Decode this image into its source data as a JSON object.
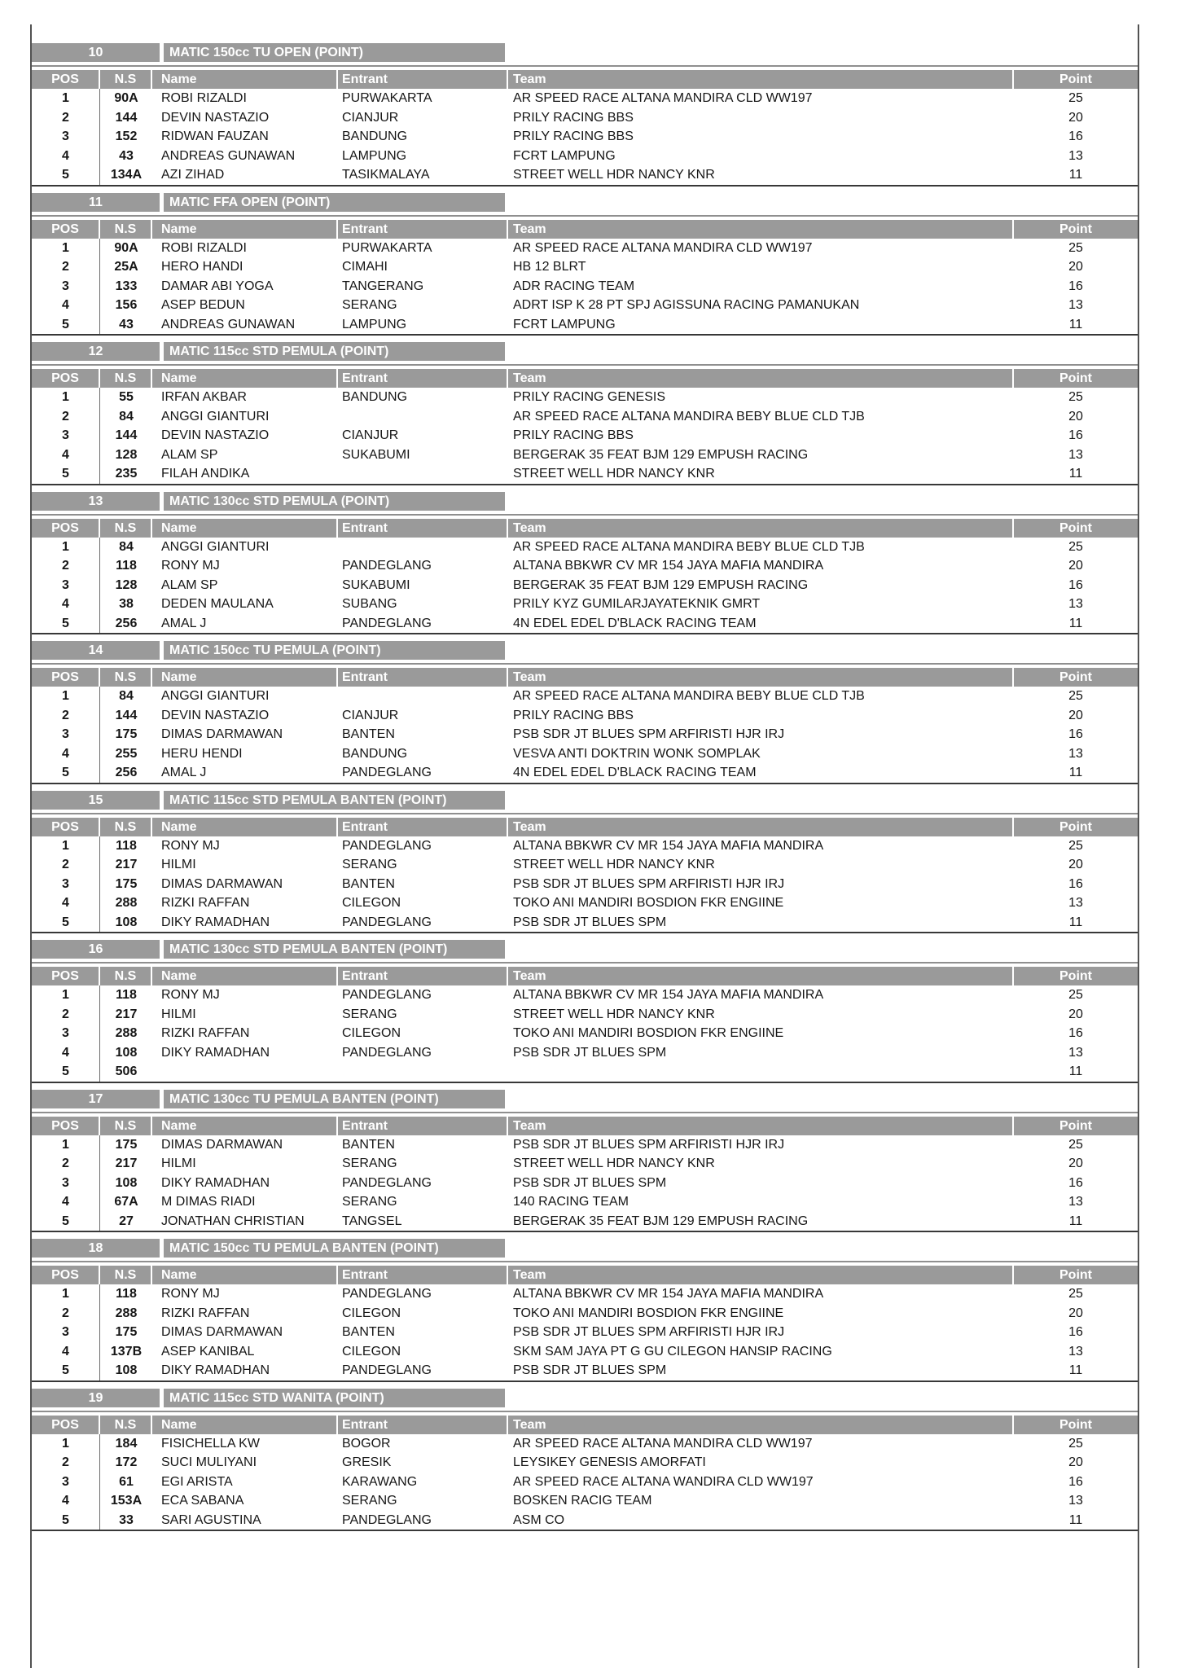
{
  "colors": {
    "header_gray": "#9a9a9a"
  },
  "columns": {
    "pos": "POS",
    "ns": "N.S",
    "name": "Name",
    "entrant": "Entrant",
    "team": "Team",
    "point": "Point"
  },
  "sections": [
    {
      "num": "10",
      "title": "MATIC 150cc TU OPEN (POINT)",
      "rows": [
        {
          "pos": "1",
          "ns": "90A",
          "name": "ROBI RIZALDI",
          "entrant": "PURWAKARTA",
          "team": "AR SPEED RACE ALTANA MANDIRA CLD WW197",
          "point": "25"
        },
        {
          "pos": "2",
          "ns": "144",
          "name": "DEVIN NASTAZIO",
          "entrant": "CIANJUR",
          "team": "PRILY RACING BBS",
          "point": "20"
        },
        {
          "pos": "3",
          "ns": "152",
          "name": "RIDWAN FAUZAN",
          "entrant": "BANDUNG",
          "team": "PRILY RACING BBS",
          "point": "16"
        },
        {
          "pos": "4",
          "ns": "43",
          "name": "ANDREAS GUNAWAN",
          "entrant": "LAMPUNG",
          "team": "FCRT LAMPUNG",
          "point": "13"
        },
        {
          "pos": "5",
          "ns": "134A",
          "name": "AZI ZIHAD",
          "entrant": "TASIKMALAYA",
          "team": "STREET WELL HDR NANCY KNR",
          "point": "11"
        }
      ]
    },
    {
      "num": "11",
      "title": "MATIC FFA OPEN (POINT)",
      "rows": [
        {
          "pos": "1",
          "ns": "90A",
          "name": "ROBI RIZALDI",
          "entrant": "PURWAKARTA",
          "team": "AR SPEED RACE ALTANA MANDIRA CLD WW197",
          "point": "25"
        },
        {
          "pos": "2",
          "ns": "25A",
          "name": "HERO HANDI",
          "entrant": "CIMAHI",
          "team": "HB 12 BLRT",
          "point": "20"
        },
        {
          "pos": "3",
          "ns": "133",
          "name": "DAMAR ABI YOGA",
          "entrant": "TANGERANG",
          "team": "ADR RACING TEAM",
          "point": "16"
        },
        {
          "pos": "4",
          "ns": "156",
          "name": "ASEP BEDUN",
          "entrant": "SERANG",
          "team": "ADRT ISP K 28 PT SPJ AGISSUNA RACING PAMANUKAN",
          "point": "13"
        },
        {
          "pos": "5",
          "ns": "43",
          "name": "ANDREAS GUNAWAN",
          "entrant": "LAMPUNG",
          "team": "FCRT LAMPUNG",
          "point": "11"
        }
      ]
    },
    {
      "num": "12",
      "title": "MATIC 115cc STD PEMULA (POINT)",
      "rows": [
        {
          "pos": "1",
          "ns": "55",
          "name": "IRFAN AKBAR",
          "entrant": "BANDUNG",
          "team": "PRILY RACING GENESIS",
          "point": "25"
        },
        {
          "pos": "2",
          "ns": "84",
          "name": "ANGGI GIANTURI",
          "entrant": "",
          "team": "AR SPEED RACE ALTANA MANDIRA BEBY BLUE CLD TJB",
          "point": "20"
        },
        {
          "pos": "3",
          "ns": "144",
          "name": "DEVIN NASTAZIO",
          "entrant": "CIANJUR",
          "team": "PRILY RACING BBS",
          "point": "16"
        },
        {
          "pos": "4",
          "ns": "128",
          "name": "ALAM SP",
          "entrant": "SUKABUMI",
          "team": "BERGERAK 35 FEAT BJM 129 EMPUSH RACING",
          "point": "13"
        },
        {
          "pos": "5",
          "ns": "235",
          "name": "FILAH ANDIKA",
          "entrant": "",
          "team": "STREET WELL HDR NANCY KNR",
          "point": "11"
        }
      ]
    },
    {
      "num": "13",
      "title": "MATIC 130cc STD PEMULA (POINT)",
      "rows": [
        {
          "pos": "1",
          "ns": "84",
          "name": "ANGGI GIANTURI",
          "entrant": "",
          "team": "AR SPEED RACE ALTANA MANDIRA BEBY BLUE CLD TJB",
          "point": "25"
        },
        {
          "pos": "2",
          "ns": "118",
          "name": "RONY MJ",
          "entrant": "PANDEGLANG",
          "team": "ALTANA BBKWR CV MR 154 JAYA MAFIA MANDIRA",
          "point": "20"
        },
        {
          "pos": "3",
          "ns": "128",
          "name": "ALAM SP",
          "entrant": "SUKABUMI",
          "team": "BERGERAK 35 FEAT BJM 129 EMPUSH RACING",
          "point": "16"
        },
        {
          "pos": "4",
          "ns": "38",
          "name": "DEDEN MAULANA",
          "entrant": "SUBANG",
          "team": "PRILY KYZ GUMILARJAYATEKNIK GMRT",
          "point": "13"
        },
        {
          "pos": "5",
          "ns": "256",
          "name": "AMAL J",
          "entrant": "PANDEGLANG",
          "team": "4N EDEL EDEL D'BLACK RACING TEAM",
          "point": "11"
        }
      ]
    },
    {
      "num": "14",
      "title": "MATIC 150cc TU PEMULA (POINT)",
      "rows": [
        {
          "pos": "1",
          "ns": "84",
          "name": "ANGGI GIANTURI",
          "entrant": "",
          "team": "AR SPEED RACE ALTANA MANDIRA BEBY BLUE CLD TJB",
          "point": "25"
        },
        {
          "pos": "2",
          "ns": "144",
          "name": "DEVIN NASTAZIO",
          "entrant": "CIANJUR",
          "team": "PRILY RACING BBS",
          "point": "20"
        },
        {
          "pos": "3",
          "ns": "175",
          "name": "DIMAS DARMAWAN",
          "entrant": "BANTEN",
          "team": "PSB SDR JT BLUES SPM ARFIRISTI HJR IRJ",
          "point": "16"
        },
        {
          "pos": "4",
          "ns": "255",
          "name": "HERU HENDI",
          "entrant": "BANDUNG",
          "team": "VESVA ANTI DOKTRIN WONK SOMPLAK",
          "point": "13"
        },
        {
          "pos": "5",
          "ns": "256",
          "name": "AMAL J",
          "entrant": "PANDEGLANG",
          "team": "4N EDEL EDEL D'BLACK RACING TEAM",
          "point": "11"
        }
      ]
    },
    {
      "num": "15",
      "title": "MATIC 115cc STD PEMULA BANTEN (POINT)",
      "rows": [
        {
          "pos": "1",
          "ns": "118",
          "name": "RONY MJ",
          "entrant": "PANDEGLANG",
          "team": "ALTANA BBKWR CV MR 154 JAYA MAFIA MANDIRA",
          "point": "25"
        },
        {
          "pos": "2",
          "ns": "217",
          "name": "HILMI",
          "entrant": "SERANG",
          "team": "STREET WELL HDR NANCY KNR",
          "point": "20"
        },
        {
          "pos": "3",
          "ns": "175",
          "name": "DIMAS DARMAWAN",
          "entrant": "BANTEN",
          "team": "PSB SDR JT BLUES SPM ARFIRISTI HJR IRJ",
          "point": "16"
        },
        {
          "pos": "4",
          "ns": "288",
          "name": "RIZKI RAFFAN",
          "entrant": "CILEGON",
          "team": "TOKO ANI MANDIRI BOSDION FKR ENGIINE",
          "point": "13"
        },
        {
          "pos": "5",
          "ns": "108",
          "name": "DIKY RAMADHAN",
          "entrant": "PANDEGLANG",
          "team": "PSB SDR JT BLUES SPM",
          "point": "11"
        }
      ]
    },
    {
      "num": "16",
      "title": "MATIC 130cc STD PEMULA BANTEN (POINT)",
      "rows": [
        {
          "pos": "1",
          "ns": "118",
          "name": "RONY MJ",
          "entrant": "PANDEGLANG",
          "team": "ALTANA BBKWR CV MR 154 JAYA MAFIA MANDIRA",
          "point": "25"
        },
        {
          "pos": "2",
          "ns": "217",
          "name": "HILMI",
          "entrant": "SERANG",
          "team": "STREET WELL HDR NANCY KNR",
          "point": "20"
        },
        {
          "pos": "3",
          "ns": "288",
          "name": "RIZKI RAFFAN",
          "entrant": "CILEGON",
          "team": "TOKO ANI MANDIRI BOSDION FKR ENGIINE",
          "point": "16"
        },
        {
          "pos": "4",
          "ns": "108",
          "name": "DIKY RAMADHAN",
          "entrant": "PANDEGLANG",
          "team": "PSB SDR JT BLUES SPM",
          "point": "13"
        },
        {
          "pos": "5",
          "ns": "506",
          "name": "",
          "entrant": "",
          "team": "",
          "point": "11"
        }
      ]
    },
    {
      "num": "17",
      "title": "MATIC 130cc TU PEMULA BANTEN (POINT)",
      "rows": [
        {
          "pos": "1",
          "ns": "175",
          "name": "DIMAS DARMAWAN",
          "entrant": "BANTEN",
          "team": "PSB SDR JT BLUES SPM ARFIRISTI HJR IRJ",
          "point": "25"
        },
        {
          "pos": "2",
          "ns": "217",
          "name": "HILMI",
          "entrant": "SERANG",
          "team": "STREET WELL HDR NANCY KNR",
          "point": "20"
        },
        {
          "pos": "3",
          "ns": "108",
          "name": "DIKY RAMADHAN",
          "entrant": "PANDEGLANG",
          "team": "PSB SDR JT BLUES SPM",
          "point": "16"
        },
        {
          "pos": "4",
          "ns": "67A",
          "name": "M DIMAS RIADI",
          "entrant": "SERANG",
          "team": "140 RACING TEAM",
          "point": "13"
        },
        {
          "pos": "5",
          "ns": "27",
          "name": "JONATHAN CHRISTIAN",
          "entrant": "TANGSEL",
          "team": "BERGERAK 35 FEAT BJM 129 EMPUSH RACING",
          "point": "11"
        }
      ]
    },
    {
      "num": "18",
      "title": "MATIC 150cc TU PEMULA BANTEN (POINT)",
      "rows": [
        {
          "pos": "1",
          "ns": "118",
          "name": "RONY MJ",
          "entrant": "PANDEGLANG",
          "team": "ALTANA BBKWR CV MR 154 JAYA MAFIA MANDIRA",
          "point": "25"
        },
        {
          "pos": "2",
          "ns": "288",
          "name": "RIZKI RAFFAN",
          "entrant": "CILEGON",
          "team": "TOKO ANI MANDIRI BOSDION FKR ENGIINE",
          "point": "20"
        },
        {
          "pos": "3",
          "ns": "175",
          "name": "DIMAS DARMAWAN",
          "entrant": "BANTEN",
          "team": "PSB SDR JT BLUES SPM ARFIRISTI HJR IRJ",
          "point": "16"
        },
        {
          "pos": "4",
          "ns": "137B",
          "name": "ASEP KANIBAL",
          "entrant": "CILEGON",
          "team": "SKM SAM JAYA PT G GU CILEGON HANSIP RACING",
          "point": "13"
        },
        {
          "pos": "5",
          "ns": "108",
          "name": "DIKY RAMADHAN",
          "entrant": "PANDEGLANG",
          "team": "PSB SDR JT BLUES SPM",
          "point": "11"
        }
      ]
    },
    {
      "num": "19",
      "title": "MATIC 115cc STD WANITA (POINT)",
      "rows": [
        {
          "pos": "1",
          "ns": "184",
          "name": "FISICHELLA KW",
          "entrant": "BOGOR",
          "team": "AR SPEED RACE ALTANA MANDIRA CLD WW197",
          "point": "25"
        },
        {
          "pos": "2",
          "ns": "172",
          "name": "SUCI MULIYANI",
          "entrant": "GRESIK",
          "team": "LEYSIKEY GENESIS AMORFATI",
          "point": "20"
        },
        {
          "pos": "3",
          "ns": "61",
          "name": "EGI ARISTA",
          "entrant": "KARAWANG",
          "team": "AR SPEED RACE ALTANA WANDIRA CLD WW197",
          "point": "16"
        },
        {
          "pos": "4",
          "ns": "153A",
          "name": "ECA SABANA",
          "entrant": "SERANG",
          "team": "BOSKEN RACIG TEAM",
          "point": "13"
        },
        {
          "pos": "5",
          "ns": "33",
          "name": "SARI AGUSTINA",
          "entrant": "PANDEGLANG",
          "team": "ASM CO",
          "point": "11"
        }
      ]
    }
  ]
}
